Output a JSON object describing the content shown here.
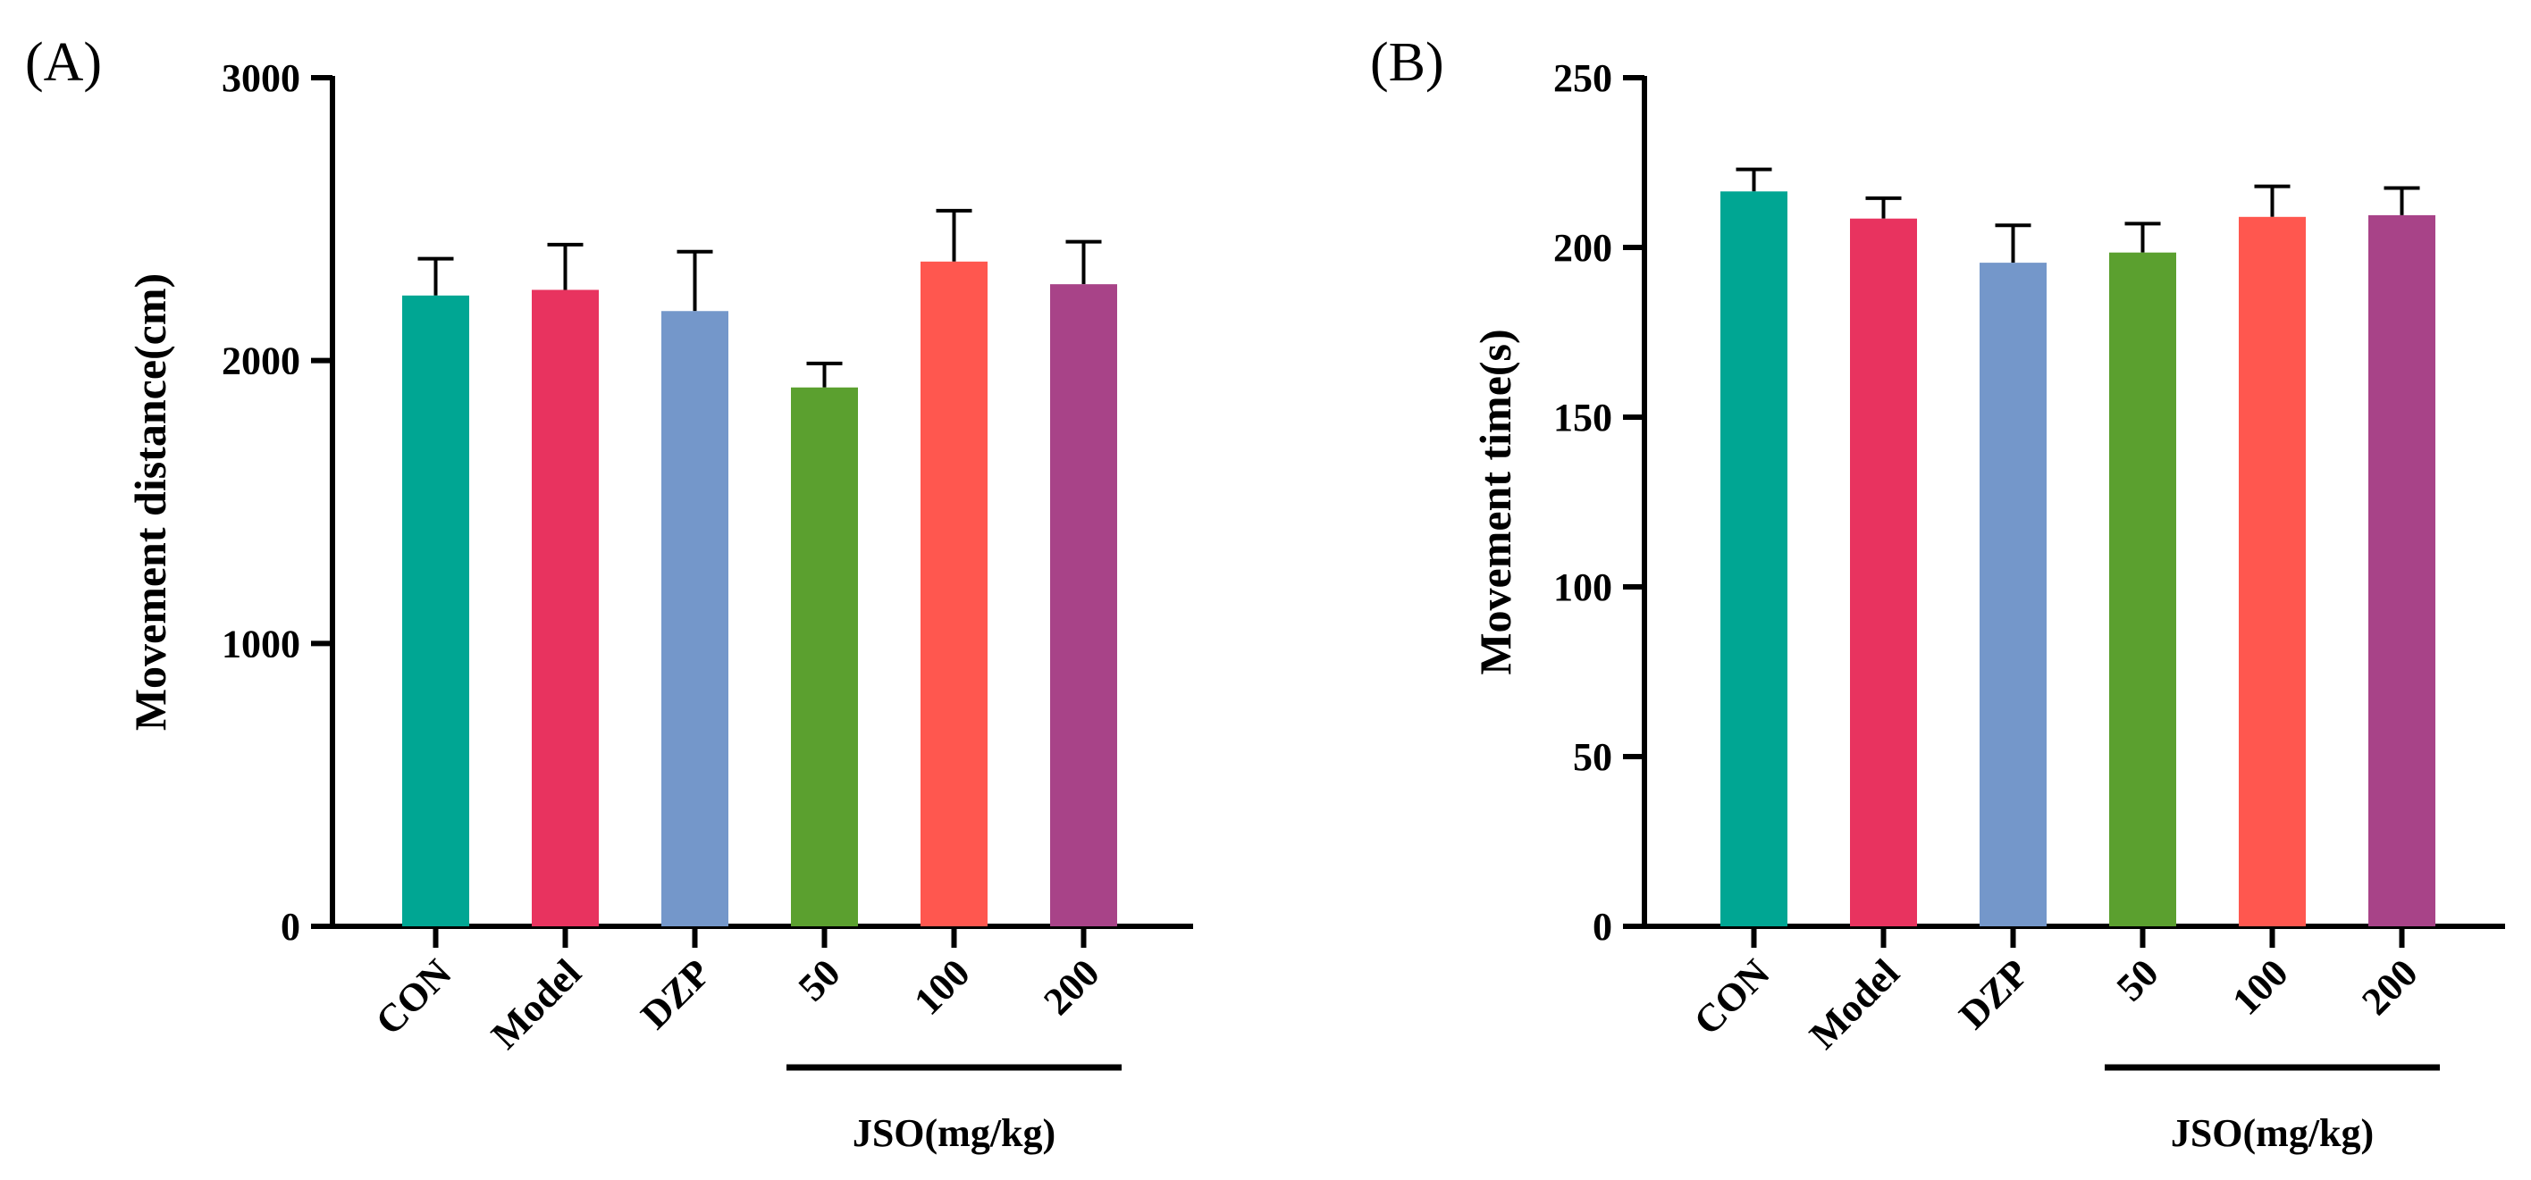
{
  "chart_data": [
    {
      "type": "bar",
      "panel_label": "(A)",
      "title": "",
      "xlabel": "",
      "ylabel": "Movement distance(cm)",
      "ylim": [
        0,
        3000
      ],
      "yticks": [
        0,
        1000,
        2000,
        3000
      ],
      "tick_labels": [
        "0",
        "1000",
        "2000",
        "3000"
      ],
      "categories": [
        "CON",
        "Model",
        "DZP",
        "50",
        "100",
        "200"
      ],
      "values": [
        2230,
        2250,
        2175,
        1905,
        2350,
        2270
      ],
      "errors": [
        130,
        160,
        210,
        85,
        180,
        150
      ],
      "colors": [
        "#00A693",
        "#E8335F",
        "#7497CA",
        "#5BA02F",
        "#FF574F",
        "#A84388"
      ],
      "group": {
        "label": "JSO(mg/kg)",
        "from": 3,
        "to": 5
      }
    },
    {
      "type": "bar",
      "panel_label": "(B)",
      "title": "",
      "xlabel": "",
      "ylabel": "Movement time(s)",
      "ylim": [
        0,
        250
      ],
      "yticks": [
        0,
        50,
        100,
        150,
        200,
        250
      ],
      "tick_labels": [
        "0",
        "50",
        "100",
        "150",
        "200",
        "250"
      ],
      "categories": [
        "CON",
        "Model",
        "DZP",
        "50",
        "100",
        "200"
      ],
      "values": [
        216.5,
        208.5,
        195.5,
        198.5,
        209,
        209.5
      ],
      "errors": [
        6.5,
        6,
        11,
        8.5,
        9,
        8
      ],
      "colors": [
        "#00A693",
        "#E8335F",
        "#7497CA",
        "#5BA02F",
        "#FF574F",
        "#A84388"
      ],
      "group": {
        "label": "JSO(mg/kg)",
        "from": 3,
        "to": 5
      }
    }
  ]
}
